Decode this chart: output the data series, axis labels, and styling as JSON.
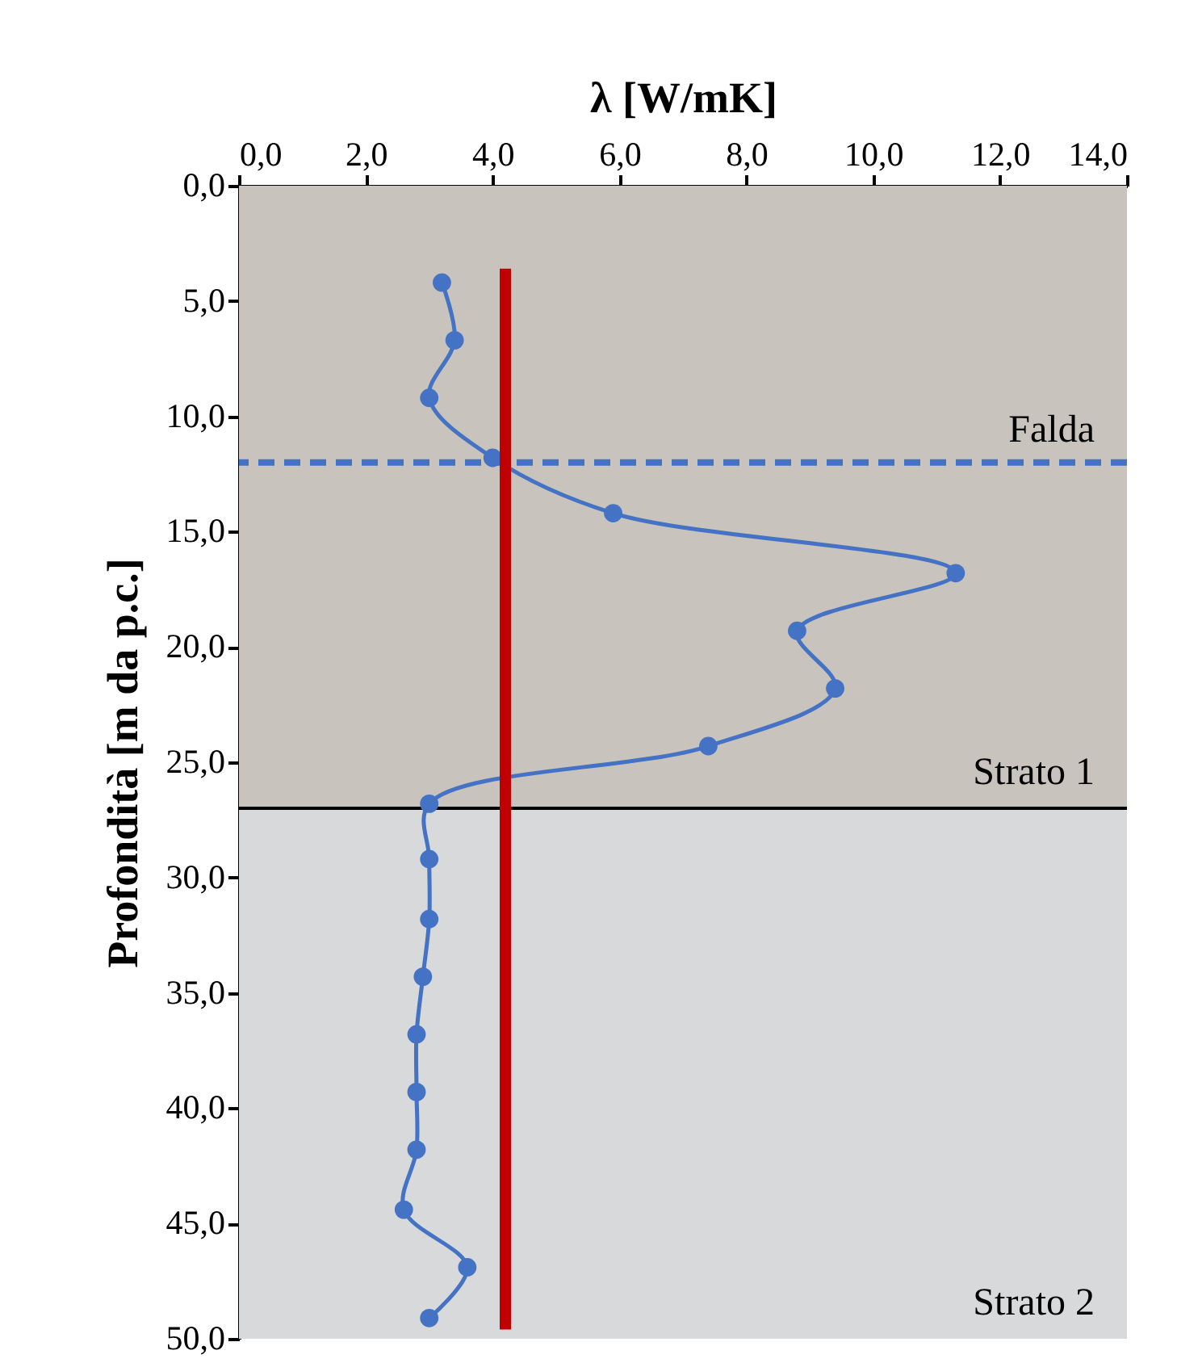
{
  "chart_data": {
    "type": "line",
    "xlabel": "λ [W/mK]",
    "ylabel": "Profondità [m da p.c.]",
    "xlim": [
      0,
      14
    ],
    "xticks": [
      {
        "value": 0,
        "label": "0,0"
      },
      {
        "value": 2,
        "label": "2,0"
      },
      {
        "value": 4,
        "label": "4,0"
      },
      {
        "value": 6,
        "label": "6,0"
      },
      {
        "value": 8,
        "label": "8,0"
      },
      {
        "value": 10,
        "label": "10,0"
      },
      {
        "value": 12,
        "label": "12,0"
      },
      {
        "value": 14,
        "label": "14,0"
      }
    ],
    "ylim": [
      50,
      0
    ],
    "yticks": [
      {
        "value": 0,
        "label": "0,0"
      },
      {
        "value": 5,
        "label": "5,0"
      },
      {
        "value": 10,
        "label": "10,0"
      },
      {
        "value": 15,
        "label": "15,0"
      },
      {
        "value": 20,
        "label": "20,0"
      },
      {
        "value": 25,
        "label": "25,0"
      },
      {
        "value": 30,
        "label": "30,0"
      },
      {
        "value": 35,
        "label": "35,0"
      },
      {
        "value": 40,
        "label": "40,0"
      },
      {
        "value": 45,
        "label": "45,0"
      },
      {
        "value": 50,
        "label": "50,0"
      }
    ],
    "grid": false,
    "series": [
      {
        "type": "line",
        "color": "#4472c4",
        "marker": "circle",
        "line_style": "solid",
        "x": [
          3.2,
          3.4,
          3.0,
          4.0,
          5.9,
          11.3,
          8.8,
          9.4,
          7.4,
          3.0,
          3.0,
          3.0,
          2.9,
          2.8,
          2.8,
          2.8,
          2.6,
          3.6,
          3.0
        ],
        "values": [
          4.2,
          6.7,
          9.2,
          11.8,
          14.2,
          16.8,
          19.3,
          21.8,
          24.3,
          26.8,
          29.2,
          31.8,
          34.3,
          36.8,
          39.3,
          41.8,
          44.4,
          46.9,
          49.1
        ]
      },
      {
        "type": "line",
        "color": "#c00000",
        "marker": "none",
        "line_style": "solid",
        "x": [
          4.2,
          4.2
        ],
        "values": [
          3.6,
          49.6
        ]
      }
    ],
    "ref_lines": [
      {
        "axis": "y",
        "value": 12.0,
        "label": "Falda",
        "color": "#4472c4",
        "line_style": "dashed"
      },
      {
        "axis": "y",
        "value": 27.0,
        "label": null,
        "color": "#000000",
        "line_style": "solid"
      }
    ],
    "bands": [
      {
        "axis": "y",
        "from": 0,
        "to": 27,
        "label": "Strato 1",
        "color": "#c9c3bd"
      },
      {
        "axis": "y",
        "from": 27,
        "to": 50,
        "label": "Strato 2",
        "color": "#d8d9da"
      }
    ]
  }
}
